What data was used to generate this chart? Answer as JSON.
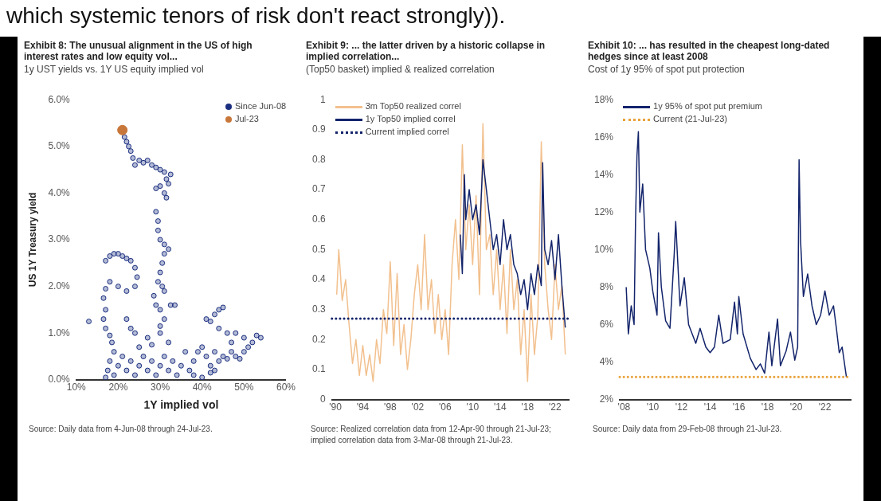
{
  "chart_data": [
    {
      "type": "other",
      "annotations": [
        "which systemic tenors of risk don't react strongly))."
      ]
    },
    {
      "type": "scatter",
      "title": "Exhibit 8: The unusual alignment in the US of high interest rates and low equity vol...",
      "subtitle": "1y UST yields vs. 1Y US equity implied vol",
      "xlabel": "1Y implied vol",
      "ylabel": "US 1Y Treasury yield",
      "marker": "circle",
      "legend": "top right",
      "xlim": [
        10,
        60
      ],
      "xticks": [
        {
          "value": 10,
          "label": "10%"
        },
        {
          "value": 20,
          "label": "20%"
        },
        {
          "value": 30,
          "label": "30%"
        },
        {
          "value": 40,
          "label": "40%"
        },
        {
          "value": 50,
          "label": "50%"
        },
        {
          "value": 60,
          "label": "60%"
        }
      ],
      "ylim": [
        0,
        6
      ],
      "yticks": [
        {
          "value": 0,
          "label": "0.0%"
        },
        {
          "value": 1,
          "label": "1.0%"
        },
        {
          "value": 2,
          "label": "2.0%"
        },
        {
          "value": 3,
          "label": "3.0%"
        },
        {
          "value": 4,
          "label": "4.0%"
        },
        {
          "value": 5,
          "label": "5.0%"
        },
        {
          "value": 6,
          "label": "6.0%"
        }
      ],
      "series": [
        {
          "name": "Since Jun-08",
          "color": "#1b2f80",
          "x": [
            21.5,
            22,
            22.5,
            23,
            23.5,
            24,
            25,
            26,
            27,
            28,
            29,
            30,
            31,
            31.5,
            30,
            29,
            31,
            32,
            32.5,
            31.5,
            29,
            29.5,
            29.5,
            30,
            31,
            32,
            31,
            30.5,
            30,
            29.5,
            30.5,
            31,
            28.5,
            29,
            30,
            31,
            30,
            32.5,
            33.5,
            17,
            18,
            19,
            20,
            21,
            22,
            23,
            24,
            24.5,
            24,
            22,
            20,
            18,
            17,
            16.5,
            17,
            16.5,
            17,
            18,
            18.5,
            19,
            18,
            17.5,
            17,
            13,
            22,
            23,
            24,
            25,
            27,
            28,
            30,
            32,
            19,
            20,
            21,
            22,
            23,
            24,
            25,
            26,
            27,
            28,
            29,
            30,
            31,
            32,
            33,
            34,
            35,
            36,
            37,
            38,
            39,
            40,
            41,
            42,
            43,
            44,
            45,
            46,
            47,
            48,
            49,
            50,
            51,
            52,
            53,
            54,
            50,
            48,
            47,
            41,
            42,
            43,
            44,
            45,
            44,
            46,
            38,
            40,
            42,
            43
          ],
          "values": [
            5.2,
            5.1,
            5.0,
            4.9,
            4.75,
            4.6,
            4.7,
            4.65,
            4.7,
            4.6,
            4.55,
            4.5,
            4.45,
            4.3,
            4.15,
            4.1,
            4.0,
            4.2,
            4.4,
            3.9,
            3.6,
            3.4,
            3.2,
            3.0,
            2.9,
            2.8,
            2.7,
            2.5,
            2.3,
            2.1,
            2.0,
            1.9,
            1.8,
            1.6,
            1.5,
            1.3,
            1.15,
            1.6,
            1.6,
            2.55,
            2.65,
            2.7,
            2.7,
            2.65,
            2.6,
            2.55,
            2.4,
            2.2,
            2.0,
            1.9,
            2.0,
            2.1,
            1.95,
            1.75,
            1.5,
            1.3,
            1.1,
            0.95,
            0.8,
            0.6,
            0.4,
            0.2,
            0.05,
            1.25,
            1.3,
            1.1,
            1.0,
            0.7,
            0.9,
            0.75,
            1.0,
            0.8,
            0.1,
            0.3,
            0.5,
            0.2,
            0.4,
            0.1,
            0.3,
            0.5,
            0.2,
            0.4,
            0.1,
            0.3,
            0.5,
            0.2,
            0.4,
            0.1,
            0.3,
            0.6,
            0.2,
            0.4,
            0.6,
            0.7,
            0.5,
            0.3,
            0.6,
            0.4,
            0.5,
            0.45,
            0.6,
            0.5,
            0.45,
            0.6,
            0.7,
            0.8,
            0.95,
            0.9,
            0.9,
            1.0,
            0.8,
            1.3,
            1.25,
            1.4,
            1.5,
            1.55,
            1.1,
            1.0,
            0.1,
            0.05,
            0.15,
            0.2
          ]
        },
        {
          "name": "Jul-23",
          "color": "#c8773a",
          "x": [
            21
          ],
          "values": [
            5.35
          ]
        }
      ],
      "annotations": [
        "Source: Daily data from 4-Jun-08 through 24-Jul-23."
      ]
    },
    {
      "type": "line",
      "title": "Exhibit 9: ... the latter driven by a historic collapse in implied correlation...",
      "subtitle": "(Top50 basket) implied & realized correlation",
      "legend": "top left",
      "xlim": [
        1989.5,
        2024
      ],
      "xticks": [
        {
          "value": 1990,
          "label": "'90"
        },
        {
          "value": 1994,
          "label": "'94"
        },
        {
          "value": 1998,
          "label": "'98"
        },
        {
          "value": 2002,
          "label": "'02"
        },
        {
          "value": 2006,
          "label": "'06"
        },
        {
          "value": 2010,
          "label": "'10"
        },
        {
          "value": 2014,
          "label": "'14"
        },
        {
          "value": 2018,
          "label": "'18"
        },
        {
          "value": 2022,
          "label": "'22"
        }
      ],
      "ylim": [
        0,
        1
      ],
      "yticks": [
        0,
        0.1,
        0.2,
        0.3,
        0.4,
        0.5,
        0.6,
        0.7,
        0.8,
        0.9,
        1
      ],
      "series": [
        {
          "name": "3m Top50 realized correl",
          "color": "#f2c08e",
          "x": [
            1990.2,
            1990.5,
            1991,
            1991.5,
            1992,
            1992.5,
            1993,
            1993.5,
            1994,
            1994.5,
            1995,
            1995.5,
            1996,
            1996.5,
            1997,
            1997.5,
            1998,
            1998.5,
            1999,
            1999.5,
            2000,
            2000.5,
            2001,
            2001.5,
            2002,
            2002.5,
            2003,
            2003.5,
            2004,
            2004.5,
            2005,
            2005.5,
            2006,
            2006.5,
            2007,
            2007.5,
            2008,
            2008.5,
            2009,
            2009.5,
            2010,
            2010.5,
            2011,
            2011.5,
            2012,
            2012.5,
            2013,
            2013.5,
            2014,
            2014.5,
            2015,
            2015.5,
            2016,
            2016.5,
            2017,
            2017.5,
            2018,
            2018.5,
            2019,
            2019.5,
            2020,
            2020.5,
            2021,
            2021.5,
            2022,
            2022.5,
            2023,
            2023.5
          ],
          "values": [
            0.35,
            0.5,
            0.33,
            0.4,
            0.25,
            0.12,
            0.2,
            0.08,
            0.18,
            0.08,
            0.15,
            0.06,
            0.2,
            0.12,
            0.3,
            0.22,
            0.46,
            0.18,
            0.42,
            0.15,
            0.25,
            0.1,
            0.2,
            0.35,
            0.45,
            0.3,
            0.55,
            0.3,
            0.4,
            0.22,
            0.35,
            0.2,
            0.3,
            0.15,
            0.45,
            0.6,
            0.4,
            0.85,
            0.5,
            0.65,
            0.45,
            0.68,
            0.35,
            0.92,
            0.5,
            0.55,
            0.35,
            0.5,
            0.3,
            0.45,
            0.22,
            0.5,
            0.3,
            0.4,
            0.15,
            0.3,
            0.06,
            0.35,
            0.15,
            0.28,
            0.86,
            0.45,
            0.3,
            0.2,
            0.45,
            0.3,
            0.38,
            0.15
          ]
        },
        {
          "name": "1y Top50 implied correl",
          "color": "#13246b",
          "x": [
            2008.2,
            2008.5,
            2008.8,
            2009,
            2009.5,
            2010,
            2010.5,
            2011,
            2011.5,
            2012,
            2012.5,
            2013,
            2013.5,
            2014,
            2014.5,
            2015,
            2015.5,
            2016,
            2016.5,
            2017,
            2017.5,
            2018,
            2018.5,
            2019,
            2019.5,
            2020,
            2020.2,
            2020.5,
            2021,
            2021.5,
            2022,
            2022.5,
            2023,
            2023.5
          ],
          "values": [
            0.55,
            0.42,
            0.75,
            0.6,
            0.7,
            0.6,
            0.65,
            0.55,
            0.8,
            0.7,
            0.6,
            0.5,
            0.55,
            0.45,
            0.6,
            0.5,
            0.55,
            0.45,
            0.42,
            0.35,
            0.4,
            0.3,
            0.42,
            0.35,
            0.45,
            0.38,
            0.79,
            0.5,
            0.45,
            0.53,
            0.4,
            0.55,
            0.38,
            0.24
          ]
        }
      ],
      "ref_lines": [
        {
          "axis": "y",
          "value": 0.27,
          "label": "Current implied correl",
          "color": "#13246b",
          "line_style": "dotted"
        }
      ],
      "annotations": [
        "Source: Realized correlation data from 12-Apr-90 through 21-Jul-23; implied correlation data from 3-Mar-08 through 21-Jul-23."
      ]
    },
    {
      "type": "line",
      "title": "Exhibit 10: ... has resulted in the cheapest long-dated hedges since at least 2008",
      "subtitle": "Cost of 1y 95% of spot put protection",
      "legend": "top left",
      "xlim": [
        2007.7,
        2023.8
      ],
      "xticks": [
        {
          "value": 2008,
          "label": "'08"
        },
        {
          "value": 2010,
          "label": "'10"
        },
        {
          "value": 2012,
          "label": "'12"
        },
        {
          "value": 2014,
          "label": "'14"
        },
        {
          "value": 2016,
          "label": "'16"
        },
        {
          "value": 2018,
          "label": "'18"
        },
        {
          "value": 2020,
          "label": "'20"
        },
        {
          "value": 2022,
          "label": "'22"
        }
      ],
      "ylim": [
        2,
        18
      ],
      "yticks": [
        {
          "value": 2,
          "label": "2%"
        },
        {
          "value": 4,
          "label": "4%"
        },
        {
          "value": 6,
          "label": "6%"
        },
        {
          "value": 8,
          "label": "8%"
        },
        {
          "value": 10,
          "label": "10%"
        },
        {
          "value": 12,
          "label": "12%"
        },
        {
          "value": 14,
          "label": "14%"
        },
        {
          "value": 16,
          "label": "16%"
        },
        {
          "value": 18,
          "label": "18%"
        }
      ],
      "series": [
        {
          "name": "1y 95% of spot put premium",
          "color": "#13246b",
          "x": [
            2008.15,
            2008.3,
            2008.5,
            2008.7,
            2008.8,
            2008.9,
            2009.0,
            2009.1,
            2009.3,
            2009.5,
            2009.8,
            2010,
            2010.3,
            2010.4,
            2010.6,
            2010.9,
            2011.2,
            2011.5,
            2011.6,
            2011.9,
            2012.2,
            2012.5,
            2013,
            2013.3,
            2013.7,
            2014,
            2014.3,
            2014.6,
            2014.9,
            2015.4,
            2015.7,
            2015.9,
            2016,
            2016.3,
            2016.8,
            2017.2,
            2017.5,
            2017.8,
            2018.1,
            2018.3,
            2018.7,
            2018.9,
            2019.3,
            2019.6,
            2019.9,
            2020.1,
            2020.2,
            2020.3,
            2020.5,
            2020.8,
            2021.1,
            2021.4,
            2021.7,
            2022,
            2022.3,
            2022.6,
            2022.8,
            2023,
            2023.2,
            2023.5
          ],
          "values": [
            8.0,
            5.5,
            7.0,
            6.0,
            11.5,
            15.0,
            16.3,
            12.0,
            13.5,
            10.0,
            9.0,
            7.8,
            6.5,
            10.9,
            8.0,
            6.2,
            5.8,
            9.8,
            11.5,
            7.0,
            8.5,
            6.0,
            5.0,
            5.8,
            4.8,
            4.5,
            4.8,
            6.5,
            5.0,
            5.2,
            7.2,
            5.5,
            7.5,
            5.5,
            4.2,
            3.6,
            3.9,
            3.4,
            5.6,
            3.8,
            6.3,
            3.8,
            4.6,
            5.6,
            4.1,
            4.8,
            14.8,
            10.5,
            7.5,
            8.7,
            7.0,
            6.0,
            6.5,
            7.8,
            6.5,
            7.0,
            5.8,
            4.5,
            4.8,
            3.2
          ]
        }
      ],
      "ref_lines": [
        {
          "axis": "y",
          "value": 3.2,
          "label": "Current (21-Jul-23)",
          "color": "#e9a23b",
          "line_style": "dotted"
        }
      ],
      "annotations": [
        "Source: Daily data from 29-Feb-08 through 21-Jul-23."
      ]
    }
  ]
}
